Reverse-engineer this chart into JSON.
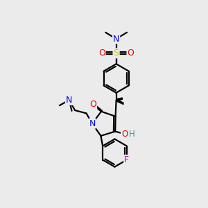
{
  "bg_color": "#ebebeb",
  "atom_colors": {
    "C": "#000000",
    "N": "#0000ee",
    "O": "#ee0000",
    "S": "#cccc00",
    "F": "#bb00bb",
    "H": "#339999"
  },
  "bond_color": "#000000",
  "bond_lw": 1.6,
  "figsize": [
    3.0,
    3.0
  ],
  "dpi": 100,
  "font": "sans-serif"
}
